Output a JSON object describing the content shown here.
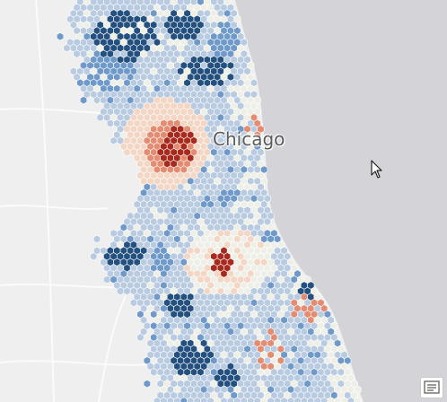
{
  "map": {
    "place_labels": [
      {
        "text": "Chicago"
      }
    ],
    "colors": {
      "land": "#efefef",
      "water": "#d3d3d8",
      "roads": "#ffffff",
      "hex_outline": "#ffffff",
      "neutral": "#eef0e8",
      "light_blue": "#b9cbe0",
      "mid_blue": "#6f99c9",
      "dark_blue": "#23507f",
      "light_red": "#f3d6c4",
      "mid_red": "#e38c72",
      "dark_red": "#a82a1f"
    },
    "icons": {
      "legend_button": "legend-icon",
      "pointer": "cursor-pointer-icon"
    }
  }
}
